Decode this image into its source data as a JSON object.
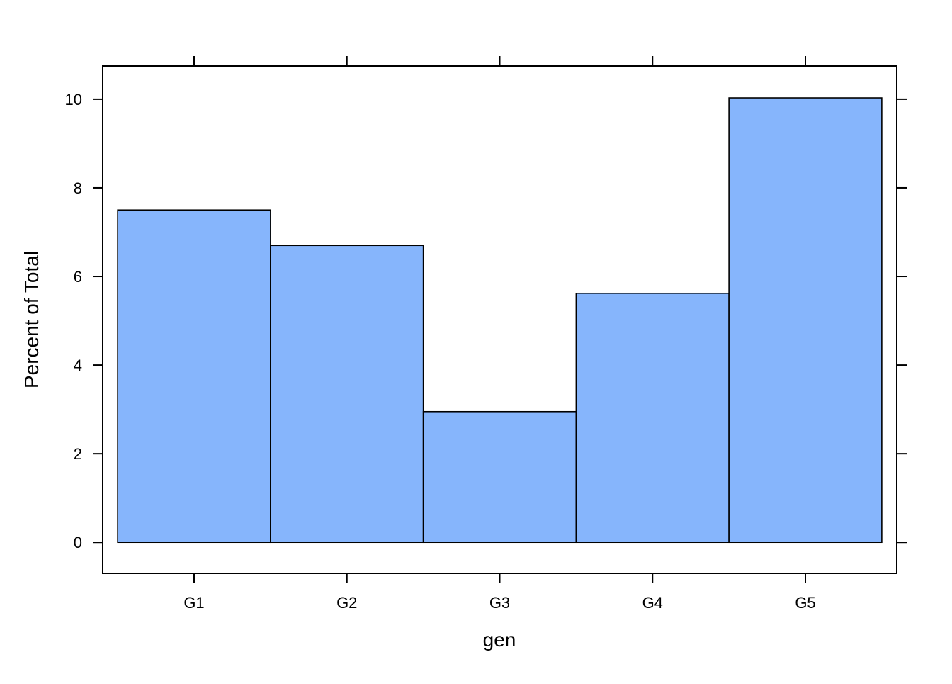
{
  "chart_data": {
    "type": "bar",
    "categories": [
      "G1",
      "G2",
      "G3",
      "G4",
      "G5"
    ],
    "values": [
      7.5,
      6.7,
      2.95,
      5.62,
      10.03
    ],
    "xlabel": "gen",
    "ylabel": "Percent of Total",
    "ylim": [
      -0.7,
      10.75
    ],
    "yticks": [
      0,
      2,
      4,
      6,
      8,
      10
    ],
    "bar_color": "#86B5FC",
    "grid": false,
    "legend": "none"
  }
}
